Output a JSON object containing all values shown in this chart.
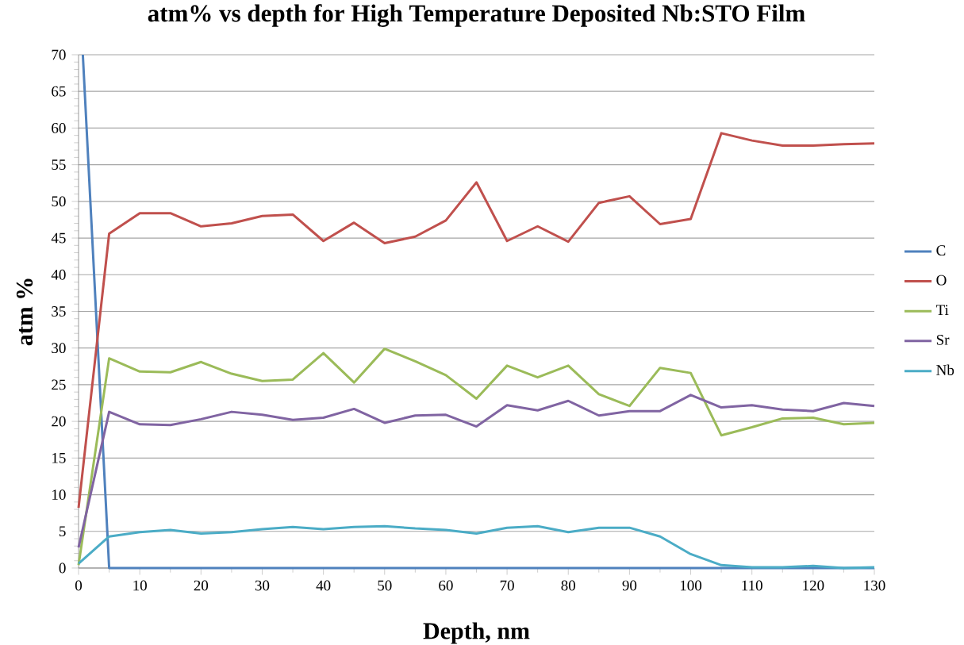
{
  "chart_data": {
    "type": "line",
    "title": "atm% vs depth for High Temperature Deposited Nb:STO Film",
    "xlabel": "Depth, nm",
    "ylabel": "atm %",
    "x": [
      0,
      5,
      10,
      15,
      20,
      25,
      30,
      35,
      40,
      45,
      50,
      55,
      60,
      65,
      70,
      75,
      80,
      85,
      90,
      95,
      100,
      105,
      110,
      115,
      120,
      125,
      130
    ],
    "series": [
      {
        "name": "C",
        "color": "#4f81bd",
        "x": [
          0.7,
          5,
          10,
          15,
          20,
          25,
          30,
          35,
          40,
          45,
          50,
          55,
          60,
          65,
          70,
          75,
          80,
          85,
          90,
          95,
          100,
          105,
          110,
          115,
          120,
          125,
          130
        ],
        "values": [
          70,
          0,
          0,
          0,
          0,
          0,
          0,
          0,
          0,
          0,
          0,
          0,
          0,
          0,
          0,
          0,
          0,
          0,
          0,
          0,
          0,
          0,
          0,
          0,
          0,
          0,
          0
        ]
      },
      {
        "name": "O",
        "color": "#c0504d",
        "values": [
          8.2,
          45.6,
          48.4,
          48.4,
          46.6,
          47.0,
          48.0,
          48.2,
          44.6,
          47.1,
          44.3,
          45.2,
          47.4,
          52.6,
          44.6,
          46.6,
          44.5,
          49.8,
          50.7,
          46.9,
          47.6,
          59.3,
          58.3,
          57.6,
          57.6,
          57.8,
          57.9
        ]
      },
      {
        "name": "Ti",
        "color": "#9bbb59",
        "values": [
          0.4,
          28.6,
          26.8,
          26.7,
          28.1,
          26.5,
          25.5,
          25.7,
          29.3,
          25.3,
          29.9,
          28.2,
          26.3,
          23.1,
          27.6,
          26.0,
          27.6,
          23.7,
          22.1,
          27.3,
          26.6,
          18.1,
          19.2,
          20.4,
          20.5,
          19.6,
          19.8
        ]
      },
      {
        "name": "Sr",
        "color": "#8064a2",
        "values": [
          2.8,
          21.3,
          19.6,
          19.5,
          20.3,
          21.3,
          20.9,
          20.2,
          20.5,
          21.7,
          19.8,
          20.8,
          20.9,
          19.3,
          22.2,
          21.5,
          22.8,
          20.8,
          21.4,
          21.4,
          23.6,
          21.9,
          22.2,
          21.6,
          21.4,
          22.5,
          22.1
        ]
      },
      {
        "name": "Nb",
        "color": "#4bacc6",
        "values": [
          0.6,
          4.3,
          4.9,
          5.2,
          4.7,
          4.9,
          5.3,
          5.6,
          5.3,
          5.6,
          5.7,
          5.4,
          5.2,
          4.7,
          5.5,
          5.7,
          4.9,
          5.5,
          5.5,
          4.3,
          1.9,
          0.4,
          0.1,
          0.1,
          0.3,
          0.0,
          0.1
        ]
      }
    ],
    "xlim": [
      0,
      130
    ],
    "ylim": [
      0,
      70
    ],
    "xticks": [
      0,
      10,
      20,
      30,
      40,
      50,
      60,
      70,
      80,
      90,
      100,
      110,
      120,
      130
    ],
    "yticks": [
      0,
      5,
      10,
      15,
      20,
      25,
      30,
      35,
      40,
      45,
      50,
      55,
      60,
      65,
      70
    ],
    "grid": "y",
    "legend": "right",
    "marker": "none",
    "line_style": "solid"
  }
}
